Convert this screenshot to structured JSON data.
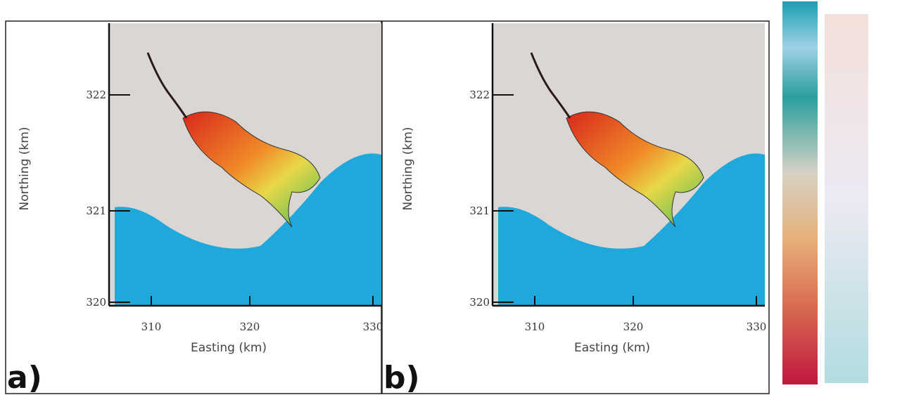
{
  "panels": [
    {
      "label": "a)",
      "xlabel": "Easting (km)",
      "ylabel": "Northing (km)",
      "xticks": [
        "310",
        "320",
        "330"
      ],
      "yticks": [
        "322",
        "321",
        "320"
      ]
    },
    {
      "label": "b)",
      "xlabel": "Easting (km)",
      "ylabel": "Northing (km)",
      "xticks": [
        "310",
        "320",
        "330"
      ],
      "yticks": [
        "322",
        "321",
        "320"
      ]
    }
  ]
}
